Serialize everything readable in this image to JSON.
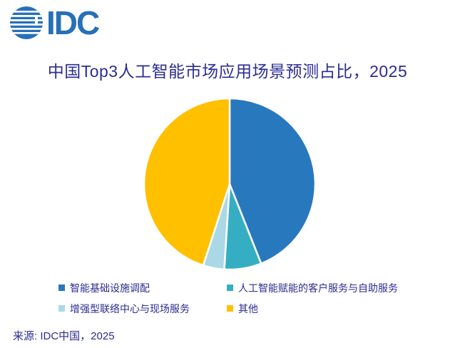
{
  "logo": {
    "text": "IDC",
    "color": "#2770B8"
  },
  "title": {
    "text": "中国Top3人工智能市场应用场景预测占比，2025"
  },
  "text_color": "#2B2D90",
  "chart_data": {
    "type": "pie",
    "title": "中国Top3人工智能市场应用场景预测占比，2025",
    "start_angle_deg": 0,
    "direction": "clockwise",
    "slice_border_color": "#ffffff",
    "slices": [
      {
        "label": "智能基础设施调配",
        "value_pct": 44,
        "color": "#2878BE"
      },
      {
        "label": "人工智能赋能的客户服务与自助服务",
        "value_pct": 7,
        "color": "#35AEC4"
      },
      {
        "label": "增强型联络中心与现场服务",
        "value_pct": 4,
        "color": "#ABD8E6"
      },
      {
        "label": "其他",
        "value_pct": 45,
        "color": "#FFC000"
      }
    ],
    "legend_position": "bottom",
    "legend_columns": 2
  },
  "footer": {
    "source": "来源: IDC中国，2025"
  }
}
